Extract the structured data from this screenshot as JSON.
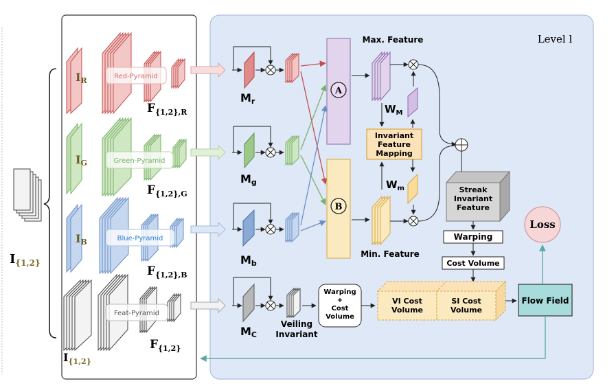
{
  "inputs": {
    "stack_main": "I",
    "stack_main_sub": "{1,2}",
    "stack_r": "I",
    "stack_r_sub": "R",
    "stack_g": "I",
    "stack_g_sub": "G",
    "stack_b": "I",
    "stack_b_sub": "B",
    "stack_feat": "I",
    "stack_feat_sub": "{1,2}"
  },
  "pyramids": {
    "red": "Red-Pyramid",
    "green": "Green-Pyramid",
    "blue": "Blue-Pyramid",
    "feat": "Feat-Pyramid"
  },
  "features": {
    "f": "F",
    "r_sub": "{1,2},R",
    "g_sub": "{1,2},G",
    "b_sub": "{1,2},B",
    "feat_sub": "{1,2}"
  },
  "level": {
    "label": "Level l"
  },
  "masks": {
    "m": "M",
    "r": "r",
    "g": "g",
    "b": "b",
    "c": "C"
  },
  "modules": {
    "a": "A",
    "b": "B",
    "max_feature": "Max. Feature",
    "min_feature": "Min. Feature",
    "w": "W",
    "wm_upper": "M",
    "wm_lower": "m",
    "ifm": [
      "Invariant",
      "Feature",
      "Mapping"
    ],
    "streak": [
      "Streak",
      "Invariant",
      "Feature"
    ],
    "warping": "Warping",
    "cost_volume": "Cost Volume",
    "warp_cost": [
      "Warping",
      "+",
      "Cost",
      "Volume"
    ],
    "veiling": [
      "Veiling",
      "Invariant"
    ],
    "vi_cost": [
      "VI Cost",
      "Volume"
    ],
    "si_cost": [
      "SI Cost",
      "Volume"
    ],
    "flow_field": "Flow Field",
    "loss": "Loss"
  },
  "colors": {
    "red": "#d06a6a",
    "red_fill": "#f4c7c7",
    "green": "#7ab06a",
    "green_fill": "#cfe7c2",
    "blue": "#6b8fc6",
    "blue_fill": "#c6d8f0",
    "gray": "#888888",
    "gray_fill": "#e8e8e8",
    "level_bg": "#dfe8f6",
    "purple_fill": "#e2d4ec",
    "yellow_fill": "#fbe9c0",
    "teal_fill": "#a8dcdc",
    "loss_fill": "#f6d6d6"
  }
}
